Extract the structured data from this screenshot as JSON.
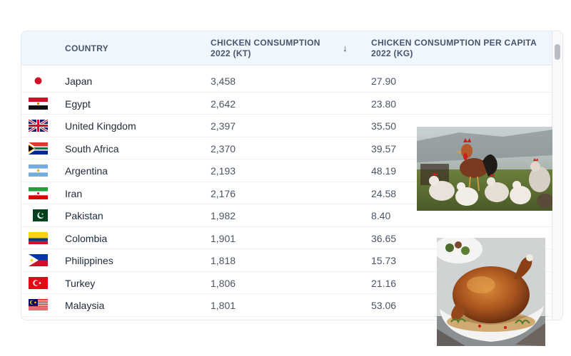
{
  "table": {
    "headers": {
      "country": "COUNTRY",
      "consumption": "CHICKEN CONSUMPTION 2022 (KT)",
      "per_capita": "CHICKEN CONSUMPTION PER CAPITA 2022 (KG)",
      "sort_indicator": "↓"
    },
    "rows": [
      {
        "flag": "japan-flag-icon",
        "country": "Japan",
        "consumption": "3,458",
        "per_capita": "27.90"
      },
      {
        "flag": "egypt-flag-icon",
        "country": "Egypt",
        "consumption": "2,642",
        "per_capita": "23.80"
      },
      {
        "flag": "united-kingdom-flag-icon",
        "country": "United Kingdom",
        "consumption": "2,397",
        "per_capita": "35.50"
      },
      {
        "flag": "south-africa-flag-icon",
        "country": "South Africa",
        "consumption": "2,370",
        "per_capita": "39.57"
      },
      {
        "flag": "argentina-flag-icon",
        "country": "Argentina",
        "consumption": "2,193",
        "per_capita": "48.19"
      },
      {
        "flag": "iran-flag-icon",
        "country": "Iran",
        "consumption": "2,176",
        "per_capita": "24.58"
      },
      {
        "flag": "pakistan-flag-icon",
        "country": "Pakistan",
        "consumption": "1,982",
        "per_capita": "8.40"
      },
      {
        "flag": "colombia-flag-icon",
        "country": "Colombia",
        "consumption": "1,901",
        "per_capita": "36.65"
      },
      {
        "flag": "philippines-flag-icon",
        "country": "Philippines",
        "consumption": "1,818",
        "per_capita": "15.73"
      },
      {
        "flag": "turkey-flag-icon",
        "country": "Turkey",
        "consumption": "1,806",
        "per_capita": "21.16"
      },
      {
        "flag": "malaysia-flag-icon",
        "country": "Malaysia",
        "consumption": "1,801",
        "per_capita": "53.06"
      }
    ]
  },
  "images": {
    "flock": "chickens-flock-photo",
    "roast": "roast-chicken-photo"
  }
}
